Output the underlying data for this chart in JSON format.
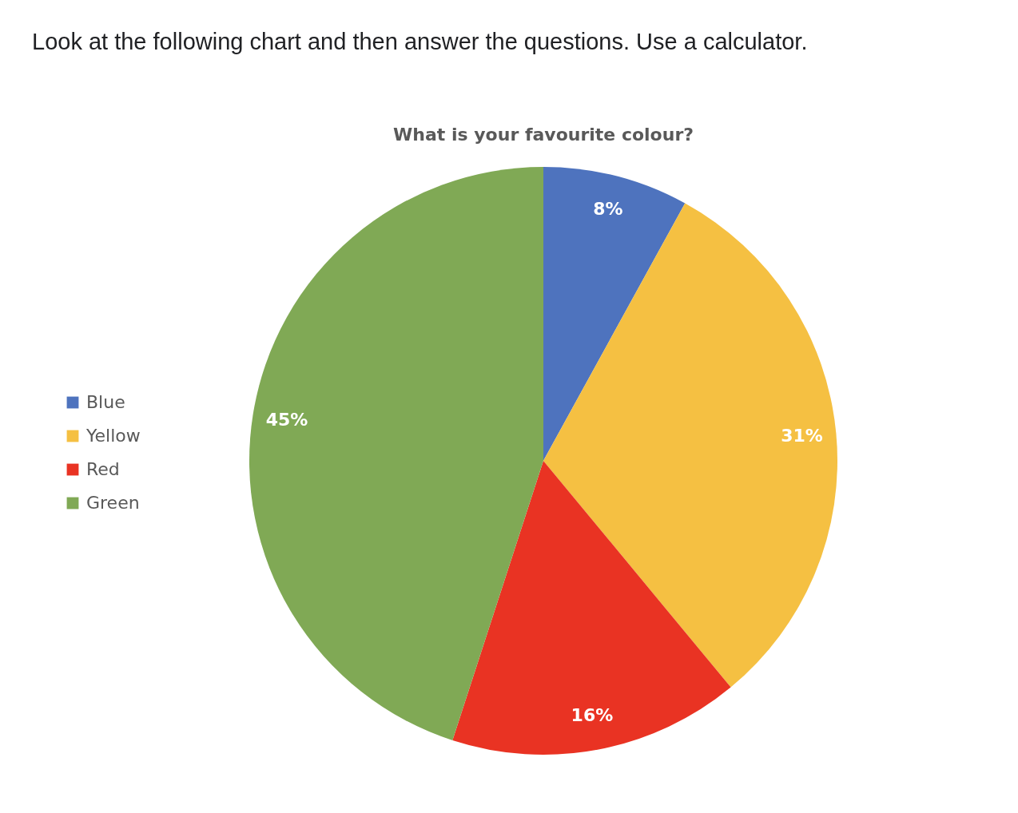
{
  "chart_data": {
    "type": "pie",
    "title": "What is your favourite colour?",
    "annotations": [
      "Look at the following chart and then answer the questions. Use a calculator."
    ],
    "categories": [
      "Blue",
      "Yellow",
      "Red",
      "Green"
    ],
    "values": [
      8,
      31,
      16,
      45
    ],
    "colors": [
      "#4e73be",
      "#f5c042",
      "#e93323",
      "#80a955"
    ],
    "value_labels": [
      "8%",
      "31%",
      "16%",
      "45%"
    ],
    "legend": "left"
  }
}
